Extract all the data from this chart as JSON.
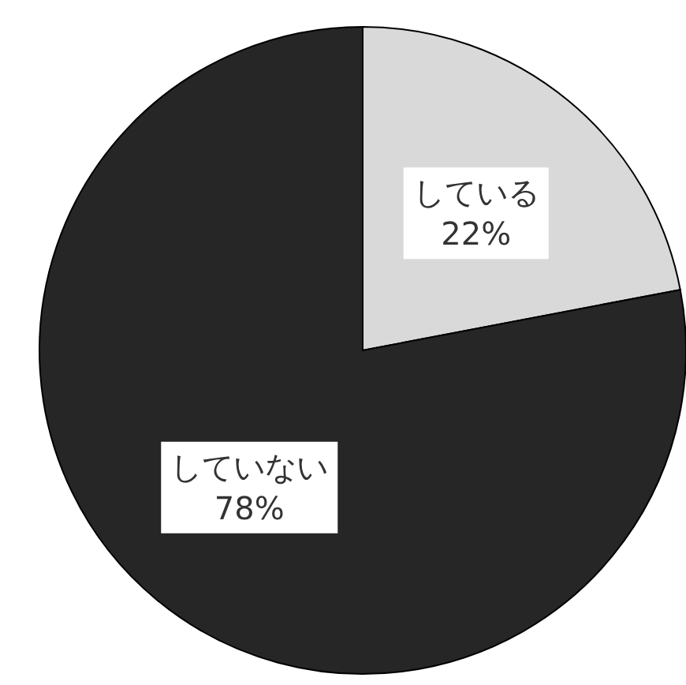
{
  "chart_data": {
    "type": "pie",
    "categories": [
      "している",
      "していない"
    ],
    "values": [
      22,
      78
    ],
    "colors": [
      "#d9d9d9",
      "#262626"
    ],
    "value_labels": [
      "22%",
      "78%"
    ]
  }
}
